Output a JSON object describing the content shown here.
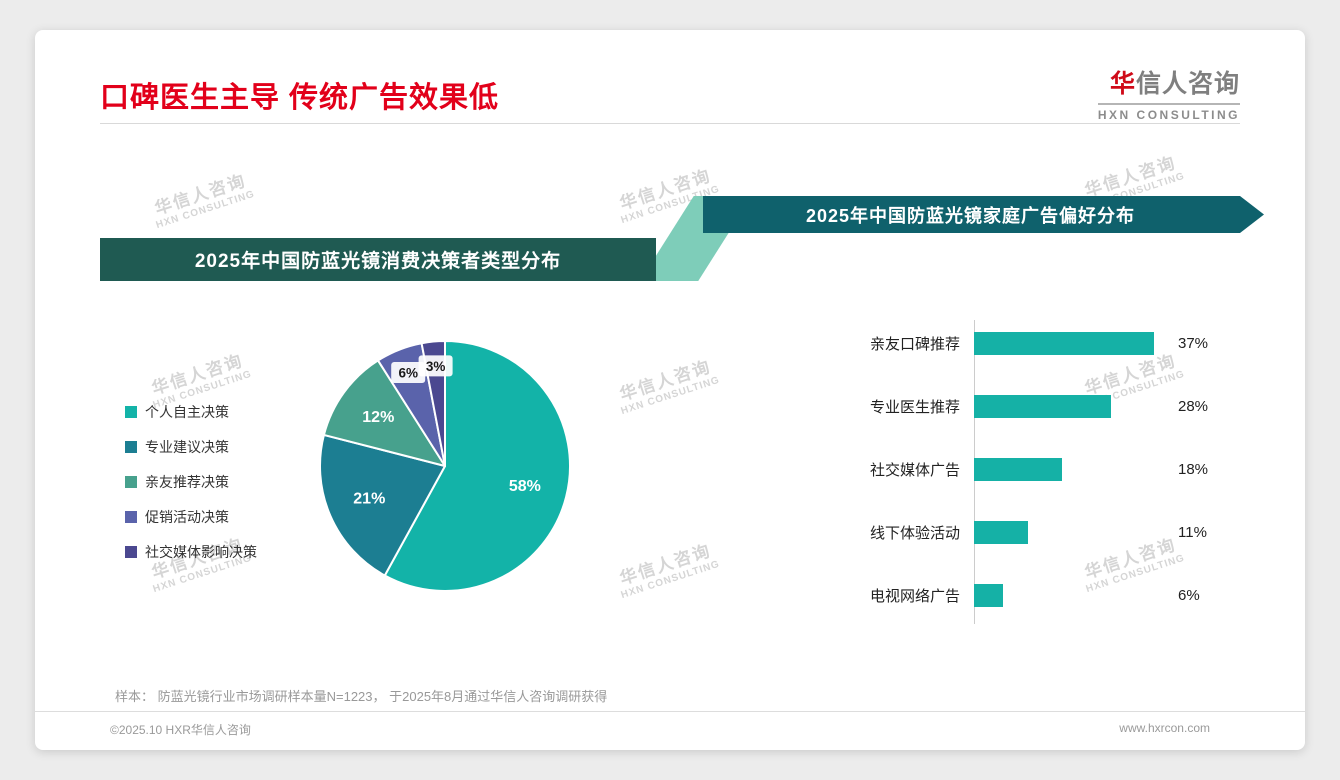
{
  "page": {
    "title": "口碑医生主导 传统广告效果低",
    "logo": {
      "accent_char": "华",
      "rest_chars": "信人咨询",
      "sub": "HXN CONSULTING"
    },
    "footnote": "样本： 防蓝光镜行业市场调研样本量N=1223， 于2025年8月通过华信人咨询调研获得",
    "footer_left": "©2025.10 HXR华信人咨询",
    "footer_right": "www.hxrcon.com",
    "watermark": {
      "line1": "华信人咨询",
      "line2": "HXN CONSULTING"
    }
  },
  "colors": {
    "title_red": "#e2001a",
    "logo_red": "#cf0a18",
    "left_banner_bg": "#1f5a52",
    "right_banner_bg": "#0f616c",
    "connector_green": "#7ecdb9"
  },
  "chart_data": [
    {
      "type": "pie",
      "title": "2025年中国防蓝光镜消费决策者类型分布",
      "labels": [
        "个人自主决策",
        "专业建议决策",
        "亲友推荐决策",
        "促销活动决策",
        "社交媒体影响决策"
      ],
      "values": [
        58,
        21,
        12,
        6,
        3
      ],
      "unit": "%",
      "colors": [
        "#13b3a8",
        "#1c7e92",
        "#47a18d",
        "#5a63ab",
        "#4b4890"
      ],
      "legend_position": "left",
      "start_angle_deg": 0,
      "direction": "clockwise"
    },
    {
      "type": "bar",
      "orientation": "horizontal",
      "title": "2025年中国防蓝光镜家庭广告偏好分布",
      "categories": [
        "亲友口碑推荐",
        "专业医生推荐",
        "社交媒体广告",
        "线下体验活动",
        "电视网络广告"
      ],
      "values": [
        37,
        28,
        18,
        11,
        6
      ],
      "unit": "%",
      "xlim": [
        0,
        40
      ],
      "bar_color": "#15b1a6",
      "grid": false,
      "legend_position": "none"
    }
  ]
}
